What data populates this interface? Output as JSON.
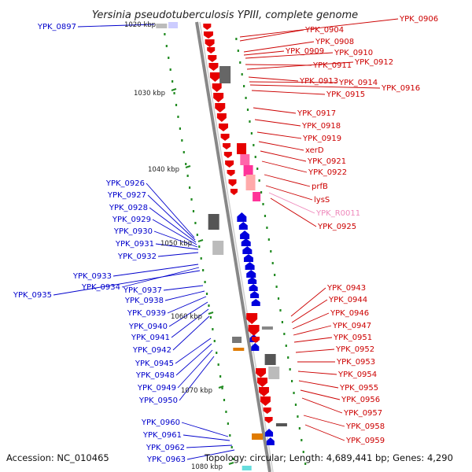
{
  "title": "Yersinia pseudotuberculosis YPIII, complete genome",
  "accession": "Accession: NC_010465",
  "topology": "Topology: circular; Length: 4,689,441 bp; Genes: 4,290",
  "colors": {
    "forward_gene": "#e60000",
    "reverse_gene": "#0000dd",
    "rna_gene": "#ff99cc",
    "gc_skew": "#228b22",
    "pseudo": "#888888",
    "orange": "#e07b00",
    "backbone": "#888888"
  },
  "kbp_ticks": [
    "1030 kbp",
    "1040 kbp",
    "1050 kbp",
    "1060 kbp",
    "1070 kbp",
    "1080 kbp"
  ],
  "partial_labels": [
    "1020 kbp"
  ],
  "left_labels": [
    "YPK_0897",
    "YPK_0926",
    "YPK_0927",
    "YPK_0928",
    "YPK_0929",
    "YPK_0930",
    "YPK_0931",
    "YPK_0932",
    "YPK_0933",
    "YPK_0934",
    "YPK_0935",
    "YPK_0937",
    "YPK_0938",
    "YPK_0939",
    "YPK_0940",
    "YPK_0941",
    "YPK_0942",
    "YPK_0945",
    "YPK_0948",
    "YPK_0949",
    "YPK_0950",
    "YPK_0960",
    "YPK_0961",
    "YPK_0962",
    "YPK_0963"
  ],
  "right_labels": [
    "YPK_0906",
    "YPK_0904",
    "YPK_0908",
    "YPK_0909",
    "YPK_0910",
    "YPK_0911",
    "YPK_0912",
    "YPK_0913",
    "YPK_0914",
    "YPK_0916",
    "YPK_0915",
    "YPK_0917",
    "YPK_0918",
    "YPK_0919",
    "xerD",
    "YPK_0921",
    "YPK_0922",
    "prfB",
    "lysS",
    "YPK_R0011",
    "YPK_0925",
    "YPK_0943",
    "YPK_0944",
    "YPK_0946",
    "YPK_0947",
    "YPK_0951",
    "YPK_0952",
    "YPK_0953",
    "YPK_0954",
    "YPK_0955",
    "YPK_0956",
    "YPK_0957",
    "YPK_0958",
    "YPK_0959"
  ]
}
